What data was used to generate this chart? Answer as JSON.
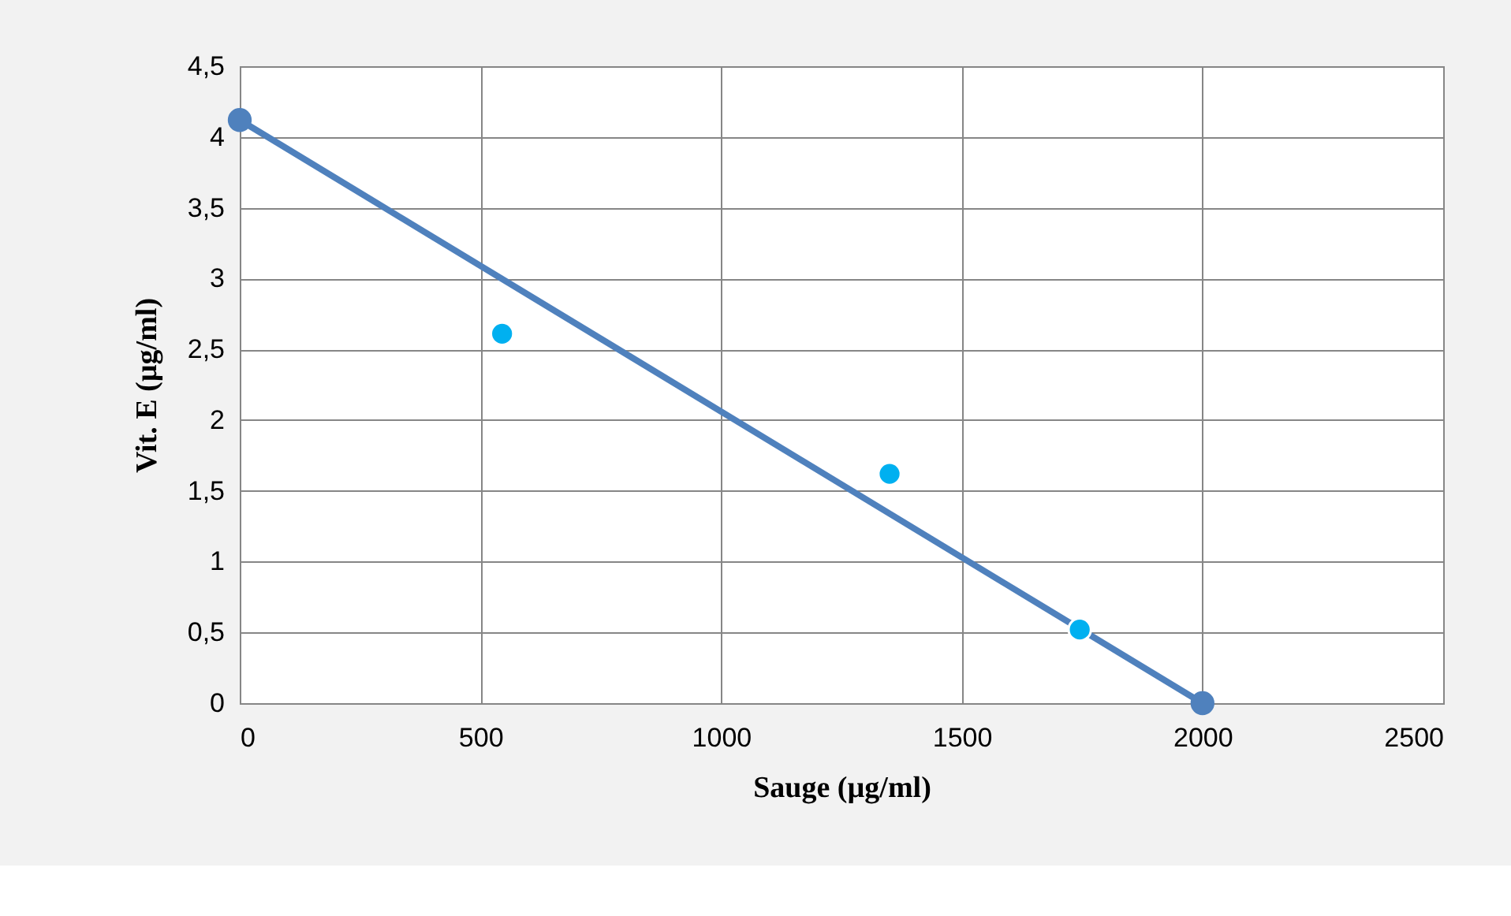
{
  "chart_data": {
    "type": "scatter",
    "xlabel": "Sauge (µg/ml)",
    "ylabel": "Vit. E (µg/ml)",
    "xlim": [
      0,
      2500
    ],
    "xticks": [
      0,
      500,
      1000,
      1500,
      2000,
      2500
    ],
    "ylim": [
      0,
      4.5
    ],
    "yticks": [
      0,
      {
        "value": 0.5,
        "label": "0,5"
      },
      1,
      {
        "value": 1.5,
        "label": "1,5"
      },
      2,
      {
        "value": 2.5,
        "label": "2,5"
      },
      3,
      {
        "value": 3.5,
        "label": "3,5"
      },
      4,
      {
        "value": 4.5,
        "label": "4,5"
      }
    ],
    "grid": true,
    "legend": false,
    "series": [
      {
        "type": "scatter",
        "color": "#00b0f0",
        "marker": "circle",
        "x": [
          545,
          1350,
          1745
        ],
        "values": [
          2.61,
          1.62,
          0.52
        ]
      },
      {
        "type": "line",
        "color": "#4f81bd",
        "marker": "circle",
        "line_style": "solid",
        "x": [
          0,
          2000
        ],
        "values": [
          4.12,
          0
        ]
      }
    ]
  }
}
